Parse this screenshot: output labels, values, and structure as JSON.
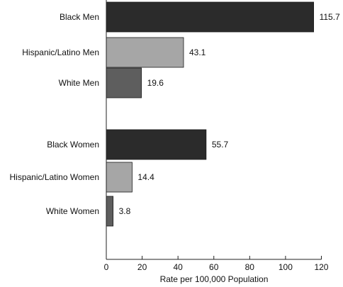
{
  "chart_data": {
    "type": "bar",
    "orientation": "horizontal",
    "title": "",
    "xlabel": "Rate per 100,000 Population",
    "ylabel": "",
    "xlim": [
      0,
      120
    ],
    "xticks": [
      0,
      20,
      40,
      60,
      80,
      100,
      120
    ],
    "grid": false,
    "categories": [
      "Black Men",
      "Hispanic/Latino Men",
      "White Men",
      "Black Women",
      "Hispanic/Latino Women",
      "White Women"
    ],
    "values": [
      115.7,
      43.1,
      19.6,
      55.7,
      14.4,
      3.8
    ],
    "value_labels": [
      "115.7",
      "43.1",
      "19.6",
      "55.7",
      "14.4",
      "3.8"
    ],
    "groups": [
      {
        "label": "",
        "categories": [
          "Black Men",
          "Hispanic/Latino Men",
          "White Men"
        ]
      },
      {
        "label": "",
        "categories": [
          "Black Women",
          "Hispanic/Latino Women",
          "White Women"
        ]
      }
    ],
    "colors": {
      "Black": "#2b2b2b",
      "Hispanic/Latino": "#a6a6a6",
      "White": "#5e5e5e",
      "axis": "#222222"
    }
  }
}
